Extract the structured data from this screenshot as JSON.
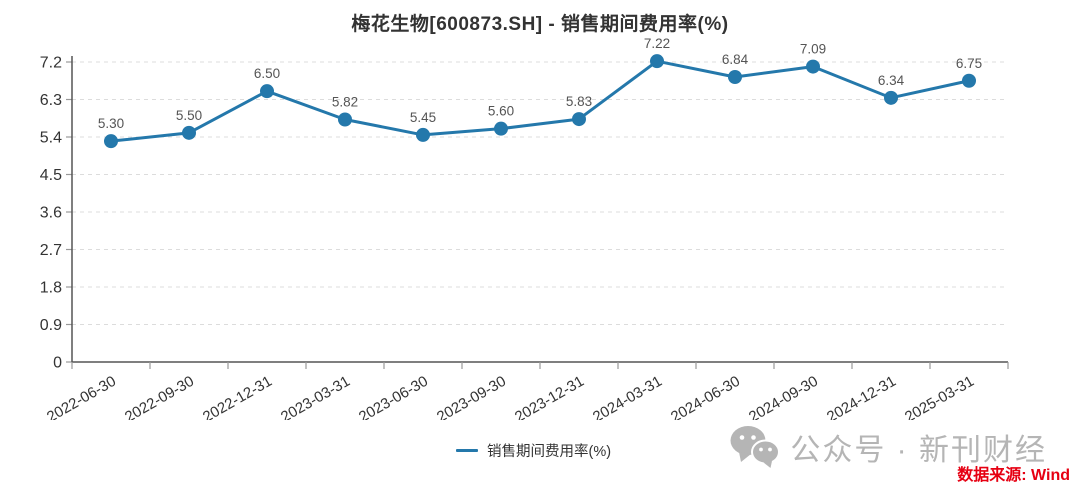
{
  "chart_data": {
    "type": "line",
    "title": "梅花生物[600873.SH] - 销售期间费用率(%)",
    "categories": [
      "2022-06-30",
      "2022-09-30",
      "2022-12-31",
      "2023-03-31",
      "2023-06-30",
      "2023-09-30",
      "2023-12-31",
      "2024-03-31",
      "2024-06-30",
      "2024-09-30",
      "2024-12-31",
      "2025-03-31"
    ],
    "series": [
      {
        "name": "销售期间费用率(%)",
        "values": [
          5.3,
          5.5,
          6.5,
          5.82,
          5.45,
          5.6,
          5.83,
          7.22,
          6.84,
          7.09,
          6.34,
          6.75
        ],
        "color": "#2478ab"
      }
    ],
    "xlabel": "",
    "ylabel": "",
    "ylim": [
      0,
      7.2
    ],
    "ytick_interval": 0.9,
    "ytick_labels": [
      "0",
      "0.9",
      "1.8",
      "2.7",
      "3.6",
      "4.5",
      "5.4",
      "6.3",
      "7.2"
    ],
    "grid": "horizontal-dashed",
    "point_labels": true,
    "x_label_rotation_deg": 30,
    "legend_position": "bottom-center"
  },
  "legend": {
    "items": [
      {
        "label": "销售期间费用率(%)",
        "color": "#2478ab"
      }
    ]
  },
  "watermark": {
    "icon": "wechat-icon",
    "brand": "公众号 · 新刊财经",
    "source": "数据来源: Wind"
  },
  "colors": {
    "line": "#2478ab",
    "axis": "#555555",
    "grid": "#dcdcdc",
    "tick": "#999999",
    "axis_label": "#333333",
    "point_label": "#555555",
    "watermark_gray": "#b5b5b5",
    "source_red": "#e60012"
  }
}
